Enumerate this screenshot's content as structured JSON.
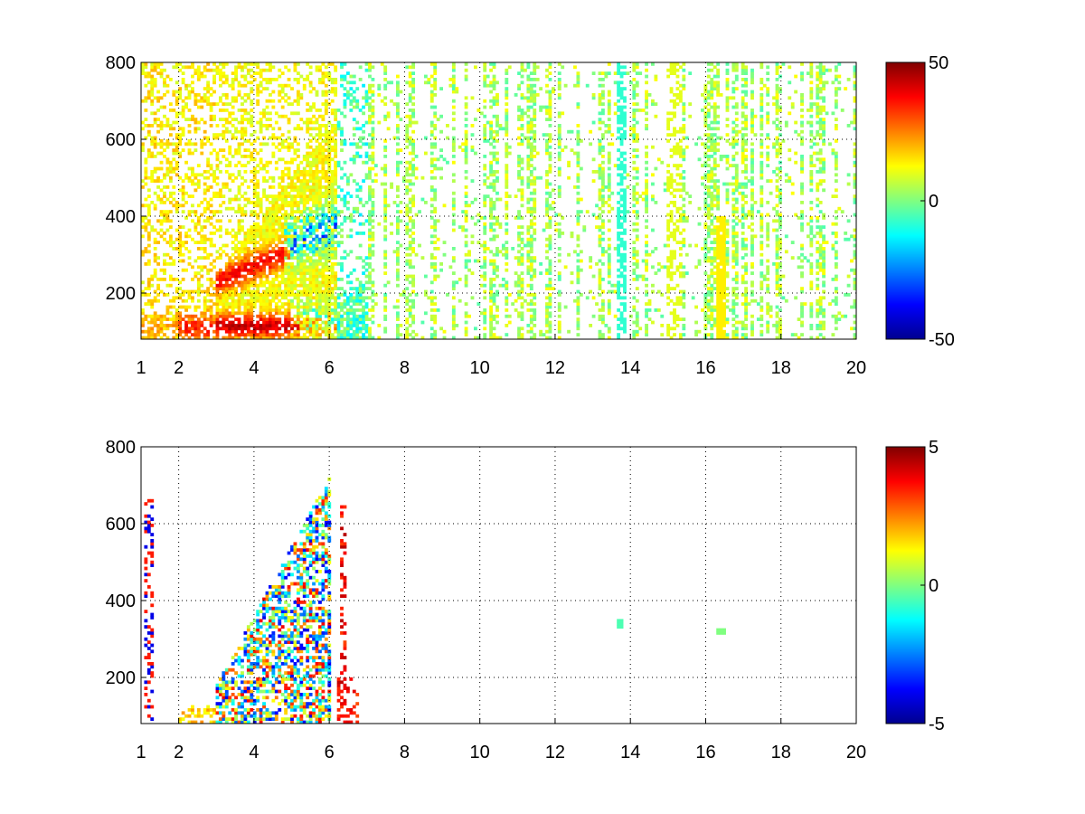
{
  "chart_data": [
    {
      "type": "heatmap",
      "title": "",
      "xlabel": "",
      "ylabel": "",
      "x_ticks": [
        1,
        2,
        4,
        6,
        8,
        10,
        12,
        14,
        16,
        18,
        20
      ],
      "y_ticks": [
        200,
        400,
        600,
        800
      ],
      "xlim": [
        1,
        20
      ],
      "ylim": [
        80,
        800
      ],
      "grid": true,
      "colormap": "jet",
      "colorbar": {
        "min": -50,
        "max": 50,
        "ticks": [
          50,
          0,
          -50
        ]
      },
      "description_of_values": "speckled field with warm ridges near y 100-150 and 250-350 between x 3 and 6, cool values near x 5.5-6.5, sparse green/yellow vertical streaks from x 6 to 20, bright yellow column near x 16.4"
    },
    {
      "type": "heatmap",
      "title": "",
      "xlabel": "",
      "ylabel": "",
      "x_ticks": [
        1,
        2,
        4,
        6,
        8,
        10,
        12,
        14,
        16,
        18,
        20
      ],
      "y_ticks": [
        200,
        400,
        600,
        800
      ],
      "xlim": [
        1,
        20
      ],
      "ylim": [
        80,
        800
      ],
      "grid": true,
      "colormap": "jet",
      "colorbar": {
        "min": -5,
        "max": 5,
        "ticks": [
          5,
          0,
          -5
        ]
      },
      "description_of_values": "mostly empty; cluster of mixed values between x 3 and 6.8 for y 80-760, isolated points near (13.7, 340) and (16.4, 320)"
    }
  ]
}
